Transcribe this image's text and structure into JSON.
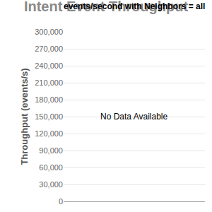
{
  "chart_data": {
    "type": "bar",
    "title": "Intent Event Throughput",
    "subtitle": "events/second with Neighbors = all",
    "y_label": "Throughput (events/s)",
    "annotation": "No Data Available",
    "categories": [],
    "values": [],
    "ylim": [
      0,
      300000
    ],
    "yticks": [
      0,
      {
        "value": 30000,
        "label": "30,000"
      },
      {
        "value": 60000,
        "label": "60,000"
      },
      {
        "value": 90000,
        "label": "90,000"
      },
      {
        "value": 120000,
        "label": "120,000"
      },
      {
        "value": 150000,
        "label": "150,000"
      },
      {
        "value": 180000,
        "label": "180,000"
      },
      {
        "value": 210000,
        "label": "210,000"
      },
      {
        "value": 240000,
        "label": "240,000"
      },
      {
        "value": 270000,
        "label": "270,000"
      },
      {
        "value": 300000,
        "label": "300,000"
      }
    ],
    "grid": true,
    "tick_labels": "y"
  }
}
